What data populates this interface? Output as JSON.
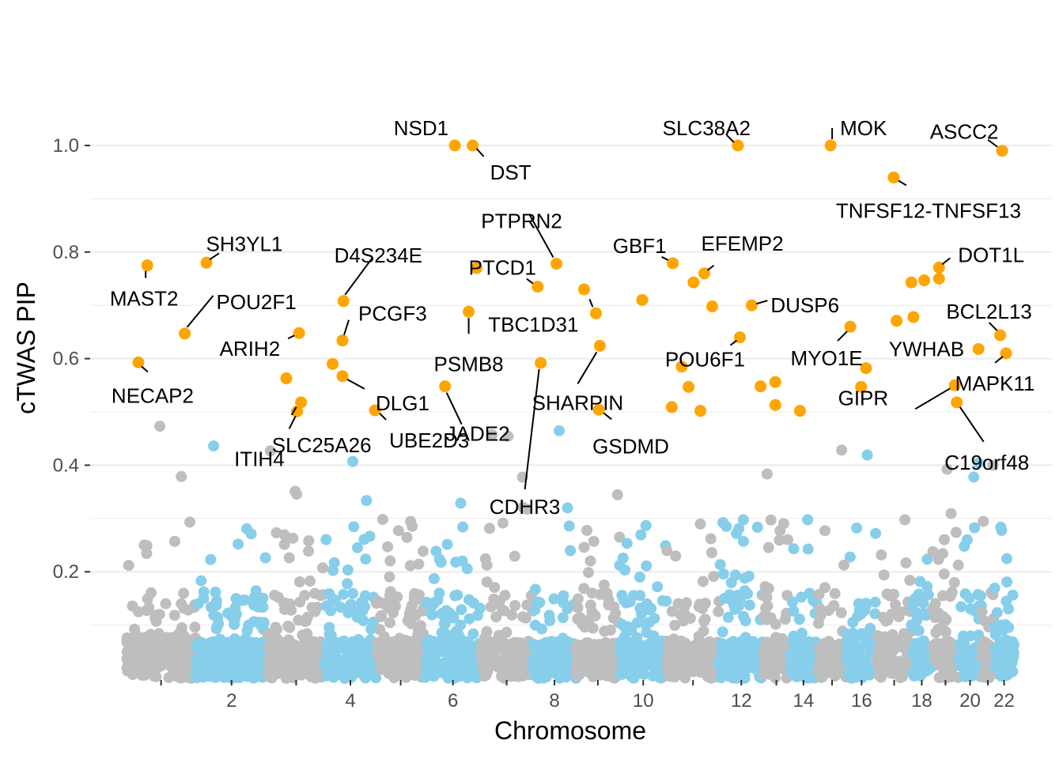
{
  "chart_data": {
    "type": "scatter",
    "subtype": "manhattan",
    "title": "",
    "xlabel": "Chromosome",
    "ylabel": "cTWAS PIP",
    "ylim": [
      0,
      1.0
    ],
    "y_ticks": [
      0.2,
      0.4,
      0.6,
      0.8,
      1.0
    ],
    "y_tick_labels": [
      "0.2",
      "0.4",
      "0.6",
      "0.8",
      "1.0"
    ],
    "chromosomes": [
      {
        "chr": 1,
        "start": 0,
        "end": 7.0,
        "label": ""
      },
      {
        "chr": 2,
        "start": 7.0,
        "end": 14.3,
        "label": "2"
      },
      {
        "chr": 3,
        "start": 14.3,
        "end": 20.1,
        "label": ""
      },
      {
        "chr": 4,
        "start": 20.1,
        "end": 25.3,
        "label": "4"
      },
      {
        "chr": 5,
        "start": 25.3,
        "end": 30.3,
        "label": ""
      },
      {
        "chr": 6,
        "start": 30.3,
        "end": 35.9,
        "label": "6"
      },
      {
        "chr": 7,
        "start": 35.9,
        "end": 41.2,
        "label": ""
      },
      {
        "chr": 8,
        "start": 41.2,
        "end": 45.6,
        "label": "8"
      },
      {
        "chr": 9,
        "start": 45.6,
        "end": 50.0,
        "label": ""
      },
      {
        "chr": 10,
        "start": 50.0,
        "end": 54.8,
        "label": "10"
      },
      {
        "chr": 11,
        "start": 54.8,
        "end": 60.1,
        "label": ""
      },
      {
        "chr": 12,
        "start": 60.1,
        "end": 64.6,
        "label": "12"
      },
      {
        "chr": 13,
        "start": 64.6,
        "end": 67.2,
        "label": ""
      },
      {
        "chr": 14,
        "start": 67.2,
        "end": 70.1,
        "label": "14"
      },
      {
        "chr": 15,
        "start": 70.1,
        "end": 73.0,
        "label": ""
      },
      {
        "chr": 16,
        "start": 73.0,
        "end": 76.1,
        "label": "16"
      },
      {
        "chr": 17,
        "start": 76.1,
        "end": 79.6,
        "label": ""
      },
      {
        "chr": 18,
        "start": 79.6,
        "end": 81.7,
        "label": "18"
      },
      {
        "chr": 19,
        "start": 81.7,
        "end": 84.4,
        "label": ""
      },
      {
        "chr": 20,
        "start": 84.4,
        "end": 86.7,
        "label": "20"
      },
      {
        "chr": 21,
        "start": 86.7,
        "end": 88.0,
        "label": ""
      },
      {
        "chr": 22,
        "start": 88.0,
        "end": 90.0,
        "label": "22"
      }
    ],
    "x_range": [
      0,
      90.0
    ],
    "colors": {
      "odd_chromosome": "#bebebe",
      "even_chromosome": "#87ceeb",
      "highlight": "#ffa500",
      "gridline": "#ebebeb",
      "tick": "#333333"
    },
    "highlighted_genes": [
      {
        "gene": "NSD1",
        "x": 33.3,
        "pip": 1.0
      },
      {
        "gene": "DST",
        "x": 35.1,
        "pip": 1.0
      },
      {
        "gene": "SLC38A2",
        "x": 62.0,
        "pip": 1.0
      },
      {
        "gene": "MOK",
        "x": 71.4,
        "pip": 1.0
      },
      {
        "gene": "ASCC2",
        "x": 88.8,
        "pip": 0.99
      },
      {
        "gene": "TNFSF12-TNFSF13",
        "x": 77.8,
        "pip": 0.94
      },
      {
        "gene": "MAST2",
        "x": 2.1,
        "pip": 0.775
      },
      {
        "gene": "SH3YL1",
        "x": 8.1,
        "pip": 0.78
      },
      {
        "gene": "POU2F1",
        "x": 5.9,
        "pip": 0.647
      },
      {
        "gene": "NECAP2",
        "x": 1.2,
        "pip": 0.593
      },
      {
        "gene": "ARIH2",
        "x": 17.5,
        "pip": 0.648
      },
      {
        "gene": "D4S234E",
        "x": 22.0,
        "pip": 0.708
      },
      {
        "gene": "PCGF3",
        "x": 21.9,
        "pip": 0.634
      },
      {
        "gene": "SLC25A26",
        "x": 17.7,
        "pip": 0.518
      },
      {
        "gene": "ITIH4",
        "x": 17.3,
        "pip": 0.501
      },
      {
        "gene": "DLG1",
        "x": 21.9,
        "pip": 0.567
      },
      {
        "gene": "UBE2D3",
        "x": 25.2,
        "pip": 0.503
      },
      {
        "gene": "PTPRN2",
        "x": 43.6,
        "pip": 0.778
      },
      {
        "gene": "PTCD1",
        "x": 41.7,
        "pip": 0.735
      },
      {
        "gene": "TBC1D31",
        "x": 47.6,
        "pip": 0.685
      },
      {
        "gene": "SHARPIN",
        "x": 48.0,
        "pip": 0.624
      },
      {
        "gene": "PSMB8",
        "x": 34.7,
        "pip": 0.688
      },
      {
        "gene": "JADE2",
        "x": 32.3,
        "pip": 0.548
      },
      {
        "gene": "CDHR3",
        "x": 42.0,
        "pip": 0.592
      },
      {
        "gene": "GSDMD",
        "x": 47.9,
        "pip": 0.504
      },
      {
        "gene": "GBF1",
        "x": 55.4,
        "pip": 0.779
      },
      {
        "gene": "EFEMP2",
        "x": 58.6,
        "pip": 0.76
      },
      {
        "gene": "DUSP6",
        "x": 63.4,
        "pip": 0.7
      },
      {
        "gene": "POU6F1",
        "x": 62.2,
        "pip": 0.64
      },
      {
        "gene": "MYO1E",
        "x": 73.4,
        "pip": 0.66
      },
      {
        "gene": "DOT1L",
        "x": 82.4,
        "pip": 0.771
      },
      {
        "gene": "BCL2L13",
        "x": 88.6,
        "pip": 0.644
      },
      {
        "gene": "YWHAB",
        "x": 86.4,
        "pip": 0.618
      },
      {
        "gene": "MAPK11",
        "x": 89.2,
        "pip": 0.61
      },
      {
        "gene": "GIPR",
        "x": 84.0,
        "pip": 0.55
      },
      {
        "gene": "C19orf48",
        "x": 84.2,
        "pip": 0.518
      }
    ],
    "other_highlighted_points": [
      {
        "x": 35.5,
        "pip": 0.77
      },
      {
        "x": 46.4,
        "pip": 0.73
      },
      {
        "x": 52.3,
        "pip": 0.71
      },
      {
        "x": 57.5,
        "pip": 0.743
      },
      {
        "x": 59.4,
        "pip": 0.698
      },
      {
        "x": 56.3,
        "pip": 0.585
      },
      {
        "x": 57.0,
        "pip": 0.547
      },
      {
        "x": 55.3,
        "pip": 0.509
      },
      {
        "x": 58.2,
        "pip": 0.502
      },
      {
        "x": 64.3,
        "pip": 0.548
      },
      {
        "x": 65.8,
        "pip": 0.556
      },
      {
        "x": 65.8,
        "pip": 0.513
      },
      {
        "x": 68.3,
        "pip": 0.502
      },
      {
        "x": 75.0,
        "pip": 0.582
      },
      {
        "x": 74.5,
        "pip": 0.547
      },
      {
        "x": 79.6,
        "pip": 0.743
      },
      {
        "x": 80.9,
        "pip": 0.747
      },
      {
        "x": 78.1,
        "pip": 0.671
      },
      {
        "x": 79.8,
        "pip": 0.678
      },
      {
        "x": 82.4,
        "pip": 0.75
      },
      {
        "x": 16.2,
        "pip": 0.563
      },
      {
        "x": 20.9,
        "pip": 0.59
      }
    ]
  }
}
